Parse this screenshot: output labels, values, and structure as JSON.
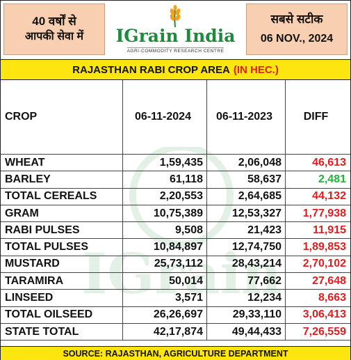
{
  "header": {
    "left_line1": "40 वर्षों से",
    "left_line2": "आपकी सेवा में",
    "brand": "IGrain India",
    "tagline": "AGRI-COMMODITY RESEARCH CENTRE",
    "right_line1": "सबसे सटीक",
    "right_line2": "06 NOV., 2024"
  },
  "title": {
    "main": "RAJASTHAN RABI CROP AREA",
    "unit": "(IN HEC.)"
  },
  "columns": [
    "CROP",
    "06-11-2024",
    "06-11-2023",
    "DIFF"
  ],
  "rows": [
    {
      "crop": "WHEAT",
      "y2024": "1,59,435",
      "y2023": "2,06,048",
      "diff": "46,613",
      "diff_color": "red"
    },
    {
      "crop": "BARLEY",
      "y2024": "61,118",
      "y2023": "58,637",
      "diff": "2,481",
      "diff_color": "green"
    },
    {
      "crop": "TOTAL CEREALS",
      "y2024": "2,20,553",
      "y2023": "2,64,685",
      "diff": "44,132",
      "diff_color": "red"
    },
    {
      "crop": "GRAM",
      "y2024": "10,75,389",
      "y2023": "12,53,327",
      "diff": "1,77,938",
      "diff_color": "red"
    },
    {
      "crop": "RABI PULSES",
      "y2024": "9,508",
      "y2023": "21,423",
      "diff": "11,915",
      "diff_color": "red"
    },
    {
      "crop": "TOTAL PULSES",
      "y2024": "10,84,897",
      "y2023": "12,74,750",
      "diff": "1,89,853",
      "diff_color": "red"
    },
    {
      "crop": "MUSTARD",
      "y2024": "25,73,112",
      "y2023": "28,43,214",
      "diff": "2,70,102",
      "diff_color": "red"
    },
    {
      "crop": "TARAMIRA",
      "y2024": "50,014",
      "y2023": "77,662",
      "diff": "27,648",
      "diff_color": "red"
    },
    {
      "crop": "LINSEED",
      "y2024": "3,571",
      "y2023": "12,234",
      "diff": "8,663",
      "diff_color": "red"
    },
    {
      "crop": "TOTAL OILSEED",
      "y2024": "26,26,697",
      "y2023": "29,33,110",
      "diff": "3,06,413",
      "diff_color": "red"
    },
    {
      "crop": "STATE TOTAL",
      "y2024": "42,17,874",
      "y2023": "49,44,433",
      "diff": "7,26,559",
      "diff_color": "red"
    }
  ],
  "footer": "SOURCE: RAJASTHAN, AGRICULTURE DEPARTMENT",
  "colors": {
    "header_bg": "#f8cfb0",
    "title_bg": "#fde60f",
    "brand_green": "#1d8a3c",
    "negative_red": "#e21d1d",
    "positive_green": "#21b33a"
  },
  "icons": [
    "wheat-logo-icon",
    "watermark-logo"
  ]
}
